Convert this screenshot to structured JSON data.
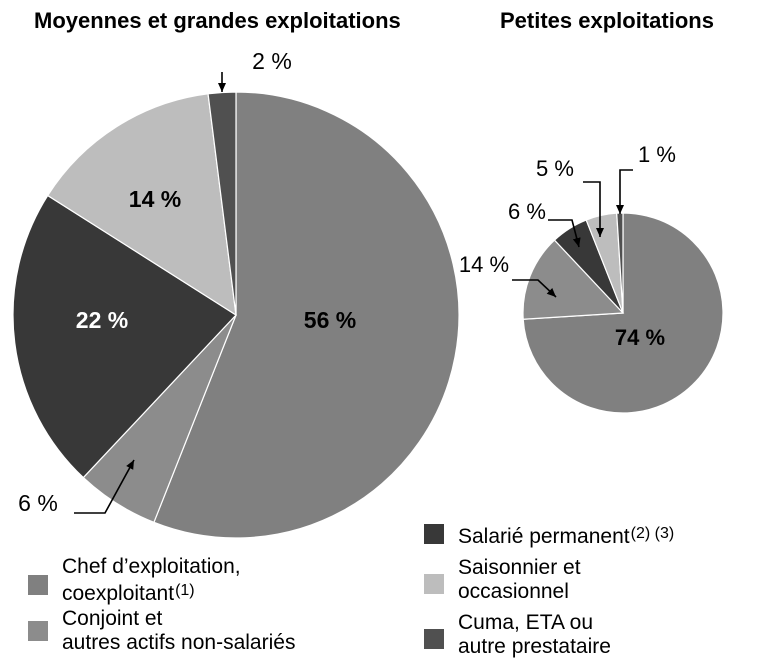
{
  "chart_data": [
    {
      "type": "pie",
      "title": "Moyennes et grandes exploitations",
      "slices": [
        {
          "legend_key": "chef",
          "value": 56,
          "label": "56 %",
          "color": "#808080",
          "label_color": "#000000"
        },
        {
          "legend_key": "conjoint",
          "value": 6,
          "label": "6 %",
          "color": "#8c8c8c",
          "label_color": "#000000"
        },
        {
          "legend_key": "salarie",
          "value": 22,
          "label": "22 %",
          "color": "#383838",
          "label_color": "#ffffff"
        },
        {
          "legend_key": "saisonnier",
          "value": 14,
          "label": "14 %",
          "color": "#bdbdbd",
          "label_color": "#000000"
        },
        {
          "legend_key": "cuma",
          "value": 2,
          "label": "2 %",
          "color": "#505050",
          "label_color": "#000000"
        }
      ]
    },
    {
      "type": "pie",
      "title": "Petites exploitations",
      "slices": [
        {
          "legend_key": "chef",
          "value": 74,
          "label": "74 %",
          "color": "#808080",
          "label_color": "#000000"
        },
        {
          "legend_key": "conjoint",
          "value": 14,
          "label": "14 %",
          "color": "#8c8c8c",
          "label_color": "#000000"
        },
        {
          "legend_key": "salarie",
          "value": 6,
          "label": "6 %",
          "color": "#383838",
          "label_color": "#000000"
        },
        {
          "legend_key": "saisonnier",
          "value": 5,
          "label": "5 %",
          "color": "#bdbdbd",
          "label_color": "#000000"
        },
        {
          "legend_key": "cuma",
          "value": 1,
          "label": "1 %",
          "color": "#505050",
          "label_color": "#000000"
        }
      ]
    }
  ],
  "legend": [
    {
      "key": "chef",
      "line1": "Chef d’exploitation,",
      "line2": "coexploitant",
      "note": "(1)",
      "color": "#808080"
    },
    {
      "key": "conjoint",
      "line1": "Conjoint et",
      "line2": "autres actifs non-salariés",
      "note": "",
      "color": "#8c8c8c"
    },
    {
      "key": "salarie",
      "line1": "Salarié permanent",
      "line2": "",
      "note": "(2) (3)",
      "color": "#383838"
    },
    {
      "key": "saisonnier",
      "line1": "Saisonnier et",
      "line2": "occasionnel",
      "note": "",
      "color": "#bdbdbd"
    },
    {
      "key": "cuma",
      "line1": "Cuma, ETA ou",
      "line2": "autre prestataire",
      "note": "",
      "color": "#505050"
    }
  ]
}
